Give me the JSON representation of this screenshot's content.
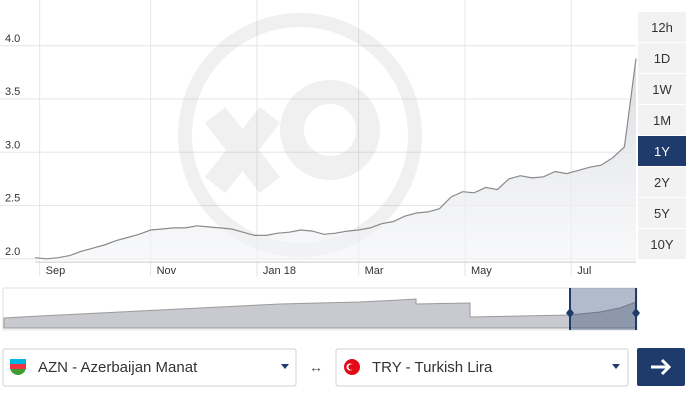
{
  "chart_data": {
    "type": "line",
    "values": [
      2.01,
      2.0,
      2.01,
      2.03,
      2.07,
      2.1,
      2.13,
      2.17,
      2.2,
      2.23,
      2.27,
      2.28,
      2.29,
      2.29,
      2.31,
      2.3,
      2.29,
      2.28,
      2.25,
      2.22,
      2.22,
      2.24,
      2.25,
      2.27,
      2.26,
      2.23,
      2.24,
      2.26,
      2.27,
      2.29,
      2.33,
      2.35,
      2.4,
      2.43,
      2.44,
      2.47,
      2.58,
      2.63,
      2.62,
      2.67,
      2.65,
      2.75,
      2.78,
      2.76,
      2.77,
      2.82,
      2.8,
      2.83,
      2.86,
      2.88,
      2.95,
      3.05,
      3.88
    ],
    "color": "#8a8a8a",
    "xlim": [
      0,
      52
    ],
    "xticks": [
      {
        "value": 0.4,
        "label": "Sep"
      },
      {
        "value": 10,
        "label": "Nov"
      },
      {
        "value": 19.2,
        "label": "Jan 18"
      },
      {
        "value": 28,
        "label": "Mar"
      },
      {
        "value": 37.2,
        "label": "May"
      },
      {
        "value": 46.4,
        "label": "Jul"
      }
    ],
    "ylim": [
      1.97,
      4.43
    ],
    "yticks": [
      {
        "value": 2,
        "label": "2.0"
      },
      {
        "value": 2.5,
        "label": "2.5"
      },
      {
        "value": 3,
        "label": "3.0"
      },
      {
        "value": 3.5,
        "label": "3.5"
      },
      {
        "value": 4,
        "label": "4.0"
      }
    ],
    "grid": true
  },
  "range_buttons": [
    "12h",
    "1D",
    "1W",
    "1M",
    "1Y",
    "2Y",
    "5Y",
    "10Y"
  ],
  "selected_range": 4,
  "from_currency": "AZN - Azerbaijan Manat",
  "to_currency": "TRY - Turkish Lira"
}
